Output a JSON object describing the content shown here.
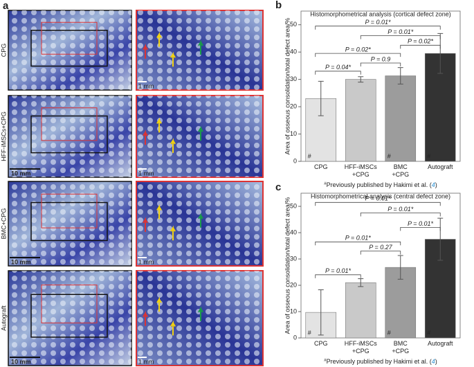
{
  "figure": {
    "panel_label": "a",
    "rows": [
      {
        "label": "CPG",
        "scale_right": "1 mm"
      },
      {
        "label": "HFF-iMSCs+CPG",
        "scale_left": "10 mm",
        "scale_right": "1 mm"
      },
      {
        "label": "BMC+CPG",
        "scale_left": "10 mm",
        "scale_right": "1 mm"
      },
      {
        "label": "Autograft",
        "scale_left": "10 mm",
        "scale_right": "1 mm"
      }
    ]
  },
  "chart_data": [
    {
      "type": "bar",
      "panel_label": "b",
      "title": "Histomorphometrical analysis (cortical defect zone)",
      "ylabel": "Area of osseous consolidation/total defect area/%",
      "categories": [
        "CPG",
        "HFF-iMSCs\n+CPG",
        "BMC\n+CPG",
        "Autograft"
      ],
      "values": [
        23,
        30,
        31.3,
        39.5
      ],
      "errors": [
        6.3,
        1,
        3,
        7.3
      ],
      "colors": [
        "#e3e3e3",
        "#c9c9c9",
        "#9c9c9c",
        "#333333"
      ],
      "hash_marked": [
        true,
        false,
        true,
        true
      ],
      "hash": "#",
      "comparisons": [
        "P = 0.04*",
        "P = 0.9",
        "P = 0.02*",
        "P = 0.02*",
        "P = 0.01*",
        "P = 0.01*"
      ],
      "ylim": [
        0,
        55
      ],
      "yticks": [
        0,
        10,
        20,
        30,
        40,
        50
      ],
      "footnote_mark": "#",
      "footnote_text": "Previously published by Hakimi et al. (",
      "footnote_ref": "4",
      "footnote_end": ")"
    },
    {
      "type": "bar",
      "panel_label": "c",
      "title": "Histomorphometrical analysis (central defect zone)",
      "ylabel": "Area of osseous consolidation/total defect area/%",
      "categories": [
        "CPG",
        "HFF-iMSCs\n+CPG",
        "BMC\n+CPG",
        "Autograft"
      ],
      "values": [
        9.7,
        21,
        26.8,
        37.5
      ],
      "errors": [
        8.6,
        1.5,
        4.5,
        8
      ],
      "colors": [
        "#e3e3e3",
        "#c9c9c9",
        "#9c9c9c",
        "#333333"
      ],
      "hash_marked": [
        true,
        false,
        true,
        true
      ],
      "hash": "#",
      "comparisons": [
        "P = 0.01*",
        "P = 0.27",
        "P = 0.01*",
        "P = 0.01*",
        "P = 0.01*",
        "P = 0.01*"
      ],
      "ylim": [
        0,
        55
      ],
      "yticks": [
        0,
        10,
        20,
        30,
        40,
        50
      ],
      "footnote_mark": "#",
      "footnote_text": "Previously published by Hakimi et al. (",
      "footnote_ref": "4",
      "footnote_end": ")"
    }
  ]
}
